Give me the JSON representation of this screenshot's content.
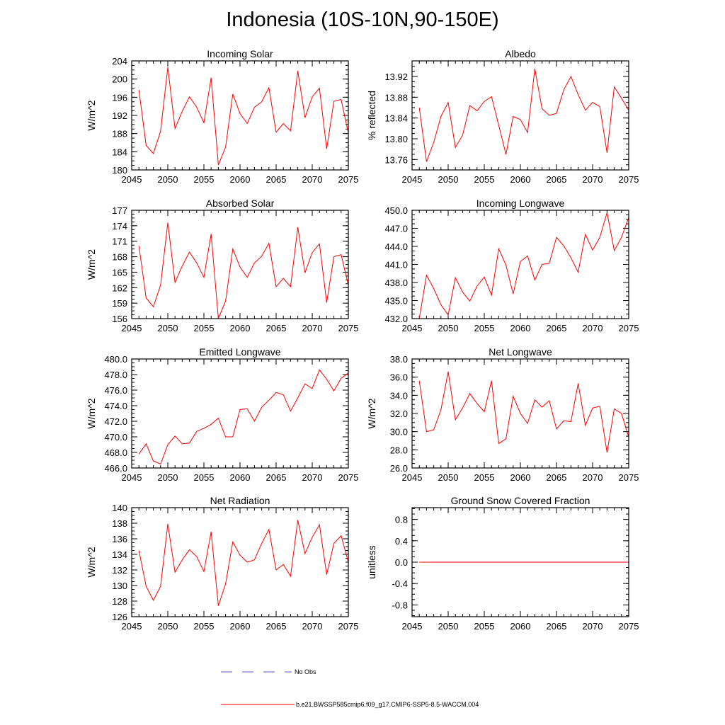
{
  "page_title": "Indonesia (10S-10N,90-150E)",
  "legend": {
    "items": [
      {
        "label": "No Obs",
        "color": "#5555cc",
        "dash": true
      },
      {
        "label": "b.e21.BWSSP585cmip6.f09_g17.CMIP6-SSP5-8.5-WACCM.004",
        "color": "#ff0000",
        "dash": false
      }
    ]
  },
  "line_color": "#ff0000",
  "chart_data": [
    {
      "type": "line",
      "title": "Incoming Solar",
      "ylabel": "W/m^2",
      "xlim": [
        2045,
        2075
      ],
      "ylim": [
        180,
        204
      ],
      "xticks": [
        "2045",
        "2050",
        "2055",
        "2060",
        "2065",
        "2070",
        "2075"
      ],
      "yticks": [
        "180",
        "184",
        "188",
        "192",
        "196",
        "200",
        "204"
      ],
      "x": [
        2046,
        2047,
        2048,
        2049,
        2050,
        2051,
        2052,
        2053,
        2054,
        2055,
        2056,
        2057,
        2058,
        2059,
        2060,
        2061,
        2062,
        2063,
        2064,
        2065,
        2066,
        2067,
        2068,
        2069,
        2070,
        2071,
        2072,
        2073,
        2074,
        2075
      ],
      "values": [
        197.6,
        185.4,
        183.6,
        188.5,
        202.6,
        189.1,
        192.9,
        196.1,
        193.8,
        190.4,
        200.3,
        181.1,
        185.0,
        196.7,
        192.4,
        190.2,
        193.8,
        195.0,
        198.1,
        188.3,
        190.2,
        188.6,
        201.8,
        191.5,
        196.1,
        198.0,
        184.6,
        195.1,
        195.5,
        188.1
      ]
    },
    {
      "type": "line",
      "title": "Albedo",
      "ylabel": "% reflected",
      "xlim": [
        2045,
        2075
      ],
      "ylim": [
        13.74,
        13.95
      ],
      "xticks": [
        "2045",
        "2050",
        "2055",
        "2060",
        "2065",
        "2070",
        "2075"
      ],
      "yticks": [
        "13.76",
        "13.80",
        "13.84",
        "13.88",
        "13.92"
      ],
      "x": [
        2046,
        2047,
        2048,
        2049,
        2050,
        2051,
        2052,
        2053,
        2054,
        2055,
        2056,
        2057,
        2058,
        2059,
        2060,
        2061,
        2062,
        2063,
        2064,
        2065,
        2066,
        2067,
        2068,
        2069,
        2070,
        2071,
        2072,
        2073,
        2074,
        2075
      ],
      "values": [
        13.86,
        13.756,
        13.793,
        13.843,
        13.87,
        13.783,
        13.807,
        13.864,
        13.854,
        13.872,
        13.881,
        13.826,
        13.77,
        13.843,
        13.837,
        13.812,
        13.935,
        13.858,
        13.845,
        13.849,
        13.894,
        13.92,
        13.885,
        13.855,
        13.87,
        13.862,
        13.773,
        13.9,
        13.878,
        13.855
      ]
    },
    {
      "type": "line",
      "title": "Absorbed Solar",
      "ylabel": "W/m^2",
      "xlim": [
        2045,
        2075
      ],
      "ylim": [
        156,
        177
      ],
      "xticks": [
        "2045",
        "2050",
        "2055",
        "2060",
        "2065",
        "2070",
        "2075"
      ],
      "yticks": [
        "156",
        "159",
        "162",
        "165",
        "168",
        "171",
        "174",
        "177"
      ],
      "x": [
        2046,
        2047,
        2048,
        2049,
        2050,
        2051,
        2052,
        2053,
        2054,
        2055,
        2056,
        2057,
        2058,
        2059,
        2060,
        2061,
        2062,
        2063,
        2064,
        2065,
        2066,
        2067,
        2068,
        2069,
        2070,
        2071,
        2072,
        2073,
        2074,
        2075
      ],
      "values": [
        170.1,
        160.0,
        158.3,
        162.5,
        174.6,
        163.0,
        166.2,
        168.9,
        166.8,
        164.0,
        172.4,
        156.0,
        159.4,
        169.5,
        166.0,
        164.0,
        166.8,
        168.1,
        170.6,
        162.2,
        163.8,
        162.2,
        173.7,
        164.9,
        168.8,
        170.5,
        159.1,
        168.0,
        168.4,
        162.5
      ]
    },
    {
      "type": "line",
      "title": "Incoming Longwave",
      "ylabel": "",
      "xlim": [
        2045,
        2075
      ],
      "ylim": [
        432.0,
        450.0
      ],
      "xticks": [
        "2045",
        "2050",
        "2055",
        "2060",
        "2065",
        "2070",
        "2075"
      ],
      "yticks": [
        "432.0",
        "435.0",
        "438.0",
        "441.0",
        "444.0",
        "447.0",
        "450.0"
      ],
      "x": [
        2046,
        2047,
        2048,
        2049,
        2050,
        2051,
        2052,
        2053,
        2054,
        2055,
        2056,
        2057,
        2058,
        2059,
        2060,
        2061,
        2062,
        2063,
        2064,
        2065,
        2066,
        2067,
        2068,
        2069,
        2070,
        2071,
        2072,
        2073,
        2074,
        2075
      ],
      "values": [
        432.0,
        439.2,
        437.0,
        434.3,
        432.6,
        438.8,
        436.4,
        434.9,
        437.4,
        438.9,
        435.9,
        443.6,
        440.9,
        436.1,
        441.5,
        442.4,
        438.4,
        441.0,
        441.2,
        445.5,
        444.1,
        442.1,
        439.7,
        446.0,
        443.4,
        445.5,
        449.6,
        443.3,
        445.5,
        448.8
      ]
    },
    {
      "type": "line",
      "title": "Emitted Longwave",
      "ylabel": "W/m^2",
      "xlim": [
        2045,
        2075
      ],
      "ylim": [
        466.0,
        480.0
      ],
      "xticks": [
        "2045",
        "2050",
        "2055",
        "2060",
        "2065",
        "2070",
        "2075"
      ],
      "yticks": [
        "466.0",
        "468.0",
        "470.0",
        "472.0",
        "474.0",
        "476.0",
        "478.0",
        "480.0"
      ],
      "x": [
        2046,
        2047,
        2048,
        2049,
        2050,
        2051,
        2052,
        2053,
        2054,
        2055,
        2056,
        2057,
        2058,
        2059,
        2060,
        2061,
        2062,
        2063,
        2064,
        2065,
        2066,
        2067,
        2068,
        2069,
        2070,
        2071,
        2072,
        2073,
        2074,
        2075
      ],
      "values": [
        467.8,
        469.1,
        466.9,
        466.5,
        469.0,
        470.1,
        469.1,
        469.2,
        470.7,
        471.1,
        471.6,
        472.4,
        470.0,
        470.0,
        473.5,
        473.6,
        472.0,
        473.8,
        474.7,
        475.7,
        475.4,
        473.3,
        475.0,
        476.8,
        476.2,
        478.6,
        477.4,
        475.9,
        477.5,
        478.2
      ]
    },
    {
      "type": "line",
      "title": "Net Longwave",
      "ylabel": "W/m^2",
      "xlim": [
        2045,
        2075
      ],
      "ylim": [
        26.0,
        38.0
      ],
      "xticks": [
        "2045",
        "2050",
        "2055",
        "2060",
        "2065",
        "2070",
        "2075"
      ],
      "yticks": [
        "26.0",
        "28.0",
        "30.0",
        "32.0",
        "34.0",
        "36.0",
        "38.0"
      ],
      "x": [
        2046,
        2047,
        2048,
        2049,
        2050,
        2051,
        2052,
        2053,
        2054,
        2055,
        2056,
        2057,
        2058,
        2059,
        2060,
        2061,
        2062,
        2063,
        2064,
        2065,
        2066,
        2067,
        2068,
        2069,
        2070,
        2071,
        2072,
        2073,
        2074,
        2075
      ],
      "values": [
        35.6,
        30.0,
        30.2,
        32.4,
        36.6,
        31.3,
        32.6,
        34.2,
        33.1,
        32.2,
        35.6,
        28.7,
        29.2,
        33.9,
        32.0,
        30.9,
        33.5,
        32.7,
        33.4,
        30.3,
        31.2,
        31.1,
        35.3,
        30.7,
        32.6,
        32.8,
        27.7,
        32.5,
        32.0,
        29.4
      ]
    },
    {
      "type": "line",
      "title": "Net Radiation",
      "ylabel": "W/m^2",
      "xlim": [
        2045,
        2075
      ],
      "ylim": [
        126,
        140
      ],
      "xticks": [
        "2045",
        "2050",
        "2055",
        "2060",
        "2065",
        "2070",
        "2075"
      ],
      "yticks": [
        "126",
        "128",
        "130",
        "132",
        "134",
        "136",
        "138",
        "140"
      ],
      "x": [
        2046,
        2047,
        2048,
        2049,
        2050,
        2051,
        2052,
        2053,
        2054,
        2055,
        2056,
        2057,
        2058,
        2059,
        2060,
        2061,
        2062,
        2063,
        2064,
        2065,
        2066,
        2067,
        2068,
        2069,
        2070,
        2071,
        2072,
        2073,
        2074,
        2075
      ],
      "values": [
        134.5,
        129.9,
        128.1,
        129.9,
        137.9,
        131.7,
        133.3,
        134.6,
        133.7,
        131.8,
        136.9,
        127.4,
        130.2,
        135.6,
        133.9,
        133.0,
        133.3,
        135.4,
        137.2,
        132.0,
        132.7,
        131.2,
        138.4,
        134.1,
        136.2,
        137.8,
        131.4,
        135.4,
        136.4,
        133.0
      ]
    },
    {
      "type": "line",
      "title": "Ground Snow Covered Fraction",
      "ylabel": "unitless",
      "xlim": [
        2045,
        2075
      ],
      "ylim": [
        -1.02,
        1.02
      ],
      "xticks": [
        "2045",
        "2050",
        "2055",
        "2060",
        "2065",
        "2070",
        "2075"
      ],
      "yticks": [
        "-0.8",
        "-0.4",
        "0.0",
        "0.4",
        "0.8"
      ],
      "x": [
        2046,
        2047,
        2048,
        2049,
        2050,
        2051,
        2052,
        2053,
        2054,
        2055,
        2056,
        2057,
        2058,
        2059,
        2060,
        2061,
        2062,
        2063,
        2064,
        2065,
        2066,
        2067,
        2068,
        2069,
        2070,
        2071,
        2072,
        2073,
        2074,
        2075
      ],
      "values": [
        0,
        0,
        0,
        0,
        0,
        0,
        0,
        0,
        0,
        0,
        0,
        0,
        0,
        0,
        0,
        0,
        0,
        0,
        0,
        0,
        0,
        0,
        0,
        0,
        0,
        0,
        0,
        0,
        0,
        0
      ]
    }
  ]
}
